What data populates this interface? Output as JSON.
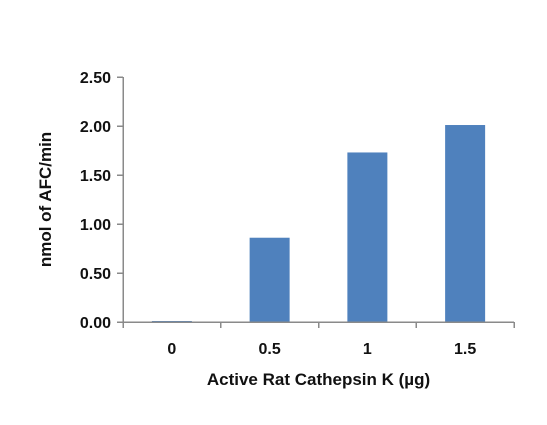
{
  "chart_data": {
    "type": "bar",
    "categories": [
      "0",
      "0.5",
      "1",
      "1.5"
    ],
    "values": [
      0.01,
      0.86,
      1.73,
      2.01
    ],
    "xlabel": "Active Rat Cathepsin K (µg)",
    "ylabel": "nmol of AFC/min",
    "ylim": [
      0,
      2.5
    ],
    "yticks": [
      "0.00",
      "0.50",
      "1.00",
      "1.50",
      "2.00",
      "2.50"
    ],
    "grid": false,
    "legend": "none",
    "colors": {
      "bar": "#4f81bd",
      "axis": "#8a8a8a",
      "text": "#111111"
    }
  }
}
